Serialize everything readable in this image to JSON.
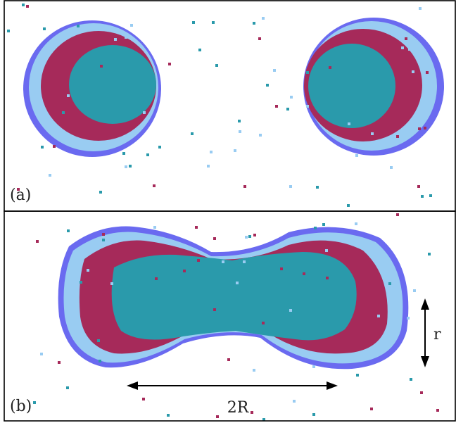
{
  "panels": [
    {
      "label": "(a)"
    },
    {
      "label": "(b)"
    }
  ],
  "annotations": {
    "separation_label": "2R",
    "radius_label": "r"
  },
  "colors": {
    "core": "#2a9aab",
    "inner_shell": "#a62a5a",
    "outer_shell": "#99ccf2",
    "rim": "#6a6af0",
    "scatter_light": "#99ccf2",
    "background": "#ffffff",
    "frame": "#000000"
  }
}
